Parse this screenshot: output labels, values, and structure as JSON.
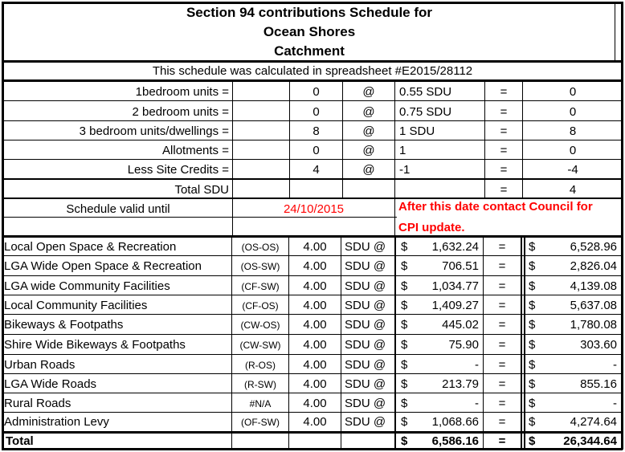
{
  "title": {
    "line1": "Section 94 contributions Schedule for",
    "line2": "Ocean Shores",
    "line3": "Catchment"
  },
  "note": "This schedule was calculated in spreadsheet #E2015/28112",
  "calc_rows": [
    {
      "label": "1bedroom units =",
      "count": "0",
      "at": "@",
      "rate": "0.55 SDU",
      "op": "=",
      "result": "0"
    },
    {
      "label": "2 bedroom units =",
      "count": "0",
      "at": "@",
      "rate": "0.75 SDU",
      "op": "=",
      "result": "0"
    },
    {
      "label": "3 bedroom units/dwellings =",
      "count": "8",
      "at": "@",
      "rate": "1 SDU",
      "op": "=",
      "result": "8"
    },
    {
      "label": "Allotments =",
      "count": "0",
      "at": "@",
      "rate": "1",
      "op": "=",
      "result": "0"
    },
    {
      "label": "Less Site Credits =",
      "count": "4",
      "at": "@",
      "rate": "-1",
      "op": "=",
      "result": "-4"
    }
  ],
  "total_sdu": {
    "label": "Total SDU",
    "op": "=",
    "value": "4"
  },
  "validity": {
    "label": "Schedule valid until",
    "date": "24/10/2015",
    "warning_line1": "After this date contact Council for",
    "warning_line2": "CPI update."
  },
  "rows": [
    {
      "name": "Local Open Space & Recreation",
      "code": "(OS-OS)",
      "qty": "4.00",
      "unit": "SDU @",
      "currency": "$",
      "cost": "1,632.24",
      "op": "=",
      "amount": "6,528.96"
    },
    {
      "name": "LGA Wide Open Space & Recreation",
      "code": "(OS-SW)",
      "qty": "4.00",
      "unit": "SDU @",
      "currency": "$",
      "cost": "706.51",
      "op": "=",
      "amount": "2,826.04"
    },
    {
      "name": "LGA wide Community Facilities",
      "code": "(CF-SW)",
      "qty": "4.00",
      "unit": "SDU @",
      "currency": "$",
      "cost": "1,034.77",
      "op": "=",
      "amount": "4,139.08"
    },
    {
      "name": "Local Community Facilities",
      "code": "(CF-OS)",
      "qty": "4.00",
      "unit": "SDU @",
      "currency": "$",
      "cost": "1,409.27",
      "op": "=",
      "amount": "5,637.08"
    },
    {
      "name": "Bikeways & Footpaths",
      "code": "(CW-OS)",
      "qty": "4.00",
      "unit": "SDU @",
      "currency": "$",
      "cost": "445.02",
      "op": "=",
      "amount": "1,780.08"
    },
    {
      "name": "Shire Wide Bikeways & Footpaths",
      "code": "(CW-SW)",
      "qty": "4.00",
      "unit": "SDU @",
      "currency": "$",
      "cost": "75.90",
      "op": "=",
      "amount": "303.60"
    },
    {
      "name": "Urban Roads",
      "code": "(R-OS)",
      "qty": "4.00",
      "unit": "SDU @",
      "currency": "$",
      "cost": "-",
      "op": "=",
      "amount": "-"
    },
    {
      "name": "LGA Wide Roads",
      "code": "(R-SW)",
      "qty": "4.00",
      "unit": "SDU @",
      "currency": "$",
      "cost": "213.79",
      "op": "=",
      "amount": "855.16"
    },
    {
      "name": "Rural Roads",
      "code": "#N/A",
      "qty": "4.00",
      "unit": "SDU @",
      "currency": "$",
      "cost": "-",
      "op": "=",
      "amount": "-"
    },
    {
      "name": "Administration Levy",
      "code": "(OF-SW)",
      "qty": "4.00",
      "unit": "SDU @",
      "currency": "$",
      "cost": "1,068.66",
      "op": "=",
      "amount": "4,274.64"
    }
  ],
  "total": {
    "label": "Total",
    "currency": "$",
    "cost": "6,586.16",
    "op": "=",
    "amount": "26,344.64"
  }
}
